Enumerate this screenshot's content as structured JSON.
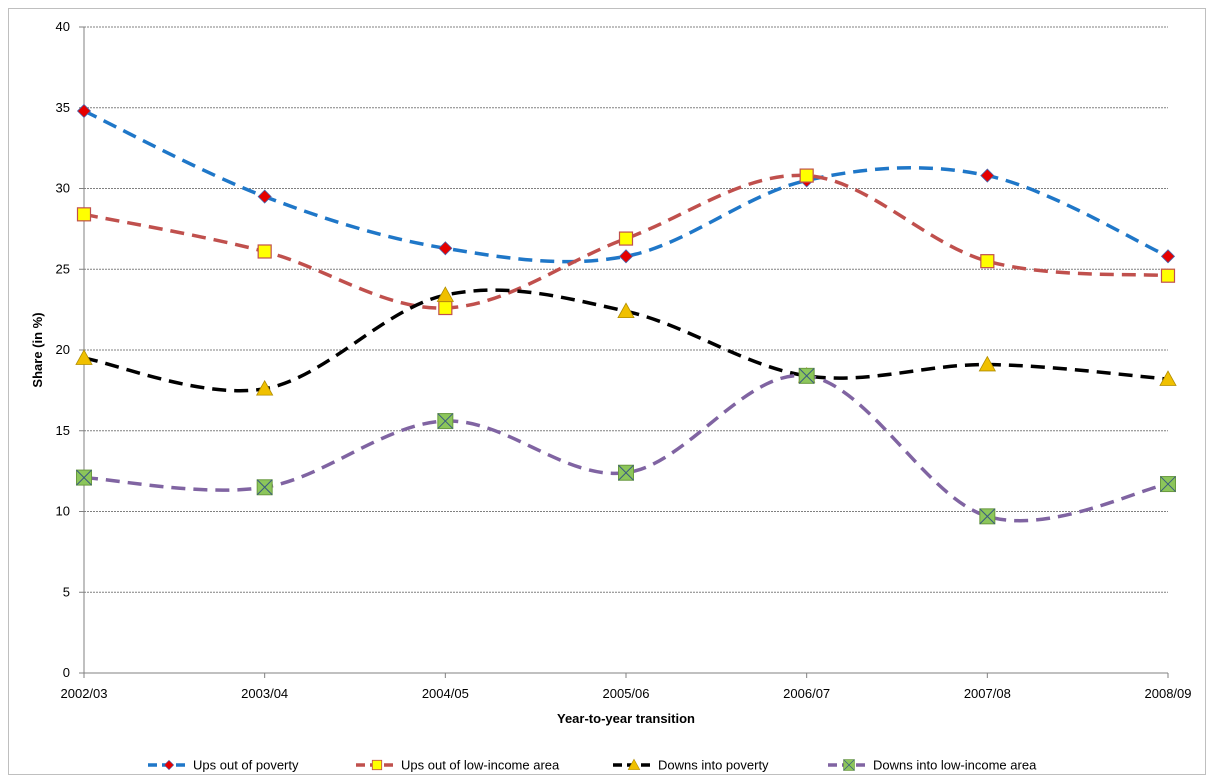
{
  "chart_data": {
    "type": "line",
    "title": "",
    "xlabel": "Year-to-year transition",
    "ylabel": "Share (in %)",
    "categories": [
      "2002/03",
      "2003/04",
      "2004/05",
      "2005/06",
      "2006/07",
      "2007/08",
      "2008/09"
    ],
    "ylim": [
      0,
      40
    ],
    "yticks": [
      0,
      5,
      10,
      15,
      20,
      25,
      30,
      35,
      40
    ],
    "grid": "horizontal",
    "legend_position": "bottom",
    "series": [
      {
        "name": "Ups out of poverty",
        "values": [
          34.8,
          29.5,
          26.3,
          25.8,
          30.5,
          30.8,
          25.8
        ],
        "line_color": "#1f77c8",
        "marker": "diamond",
        "marker_fill": "#e60000"
      },
      {
        "name": "Ups out of low-income area",
        "values": [
          28.4,
          26.1,
          22.6,
          26.9,
          30.8,
          25.5,
          24.6
        ],
        "line_color": "#c0504d",
        "marker": "square",
        "marker_fill": "#ffff00"
      },
      {
        "name": "Downs into poverty",
        "values": [
          19.5,
          17.6,
          23.4,
          22.4,
          18.4,
          19.1,
          18.2
        ],
        "line_color": "#000000",
        "marker": "triangle",
        "marker_fill": "#f0c000"
      },
      {
        "name": "Downs into low-income area",
        "values": [
          12.1,
          11.5,
          15.6,
          12.4,
          18.4,
          9.7,
          11.7
        ],
        "line_color": "#8064a2",
        "marker": "x-square",
        "marker_fill": "#8cc65a"
      }
    ]
  }
}
